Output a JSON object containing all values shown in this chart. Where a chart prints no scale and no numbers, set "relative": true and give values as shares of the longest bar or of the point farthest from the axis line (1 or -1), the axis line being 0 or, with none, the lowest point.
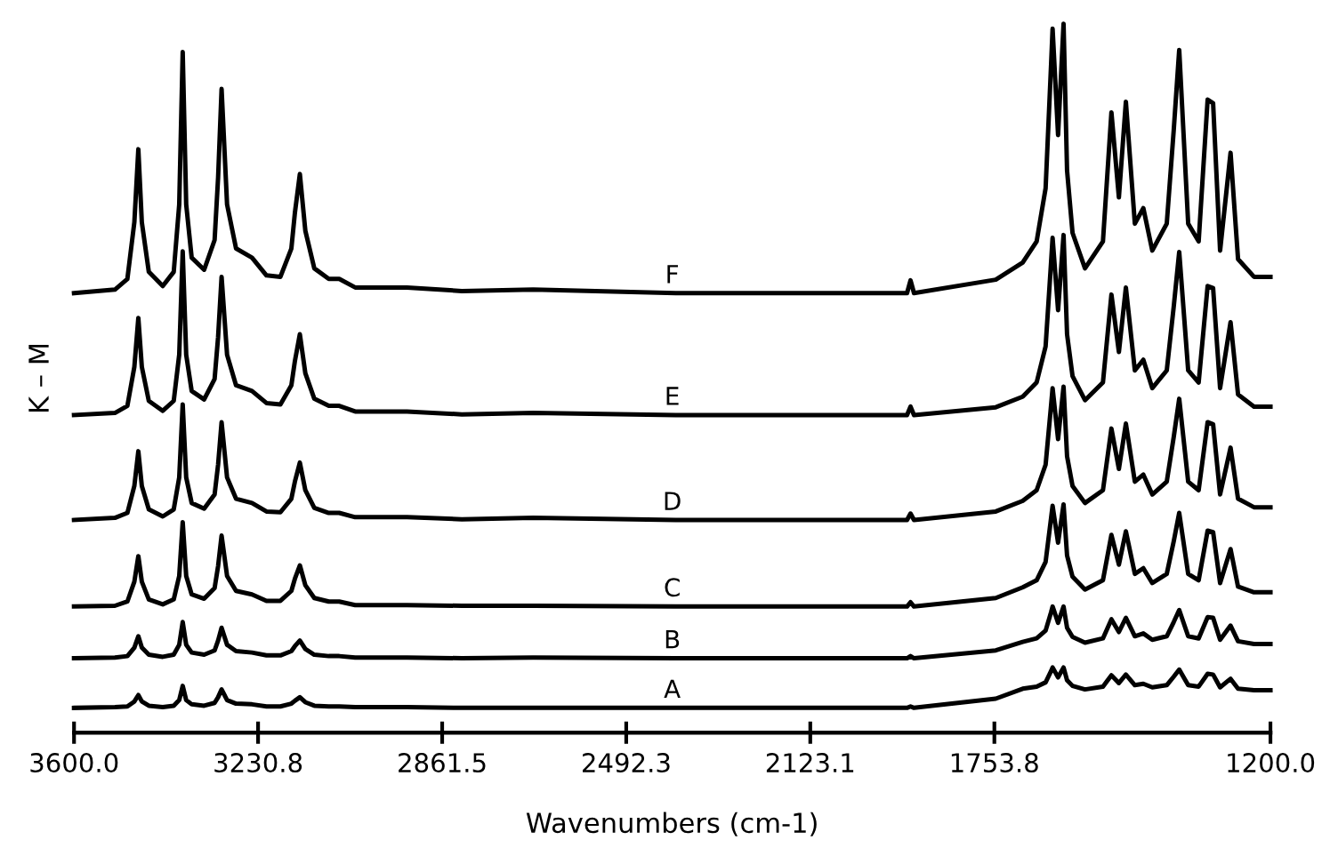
{
  "chart_data": {
    "type": "line",
    "relative": true,
    "xlabel": "Wavenumbers (cm-1)",
    "ylabel": "K – M",
    "legend": false,
    "grid": false,
    "marker": "none",
    "line_style": "solid",
    "x": [
      3600,
      3518,
      3493,
      3479,
      3471,
      3464,
      3450,
      3422,
      3400,
      3389,
      3382,
      3375,
      3364,
      3339,
      3318,
      3311,
      3304,
      3293,
      3275,
      3243,
      3214,
      3186,
      3164,
      3157,
      3147,
      3136,
      3118,
      3089,
      3068,
      3036,
      2932,
      2822,
      2679,
      2393,
      2143,
      1929,
      1922,
      1915,
      1751,
      1697,
      1669,
      1651,
      1640,
      1637,
      1626,
      1615,
      1608,
      1597,
      1572,
      1536,
      1519,
      1504,
      1490,
      1472,
      1455,
      1437,
      1408,
      1394,
      1383,
      1365,
      1344,
      1326,
      1315,
      1301,
      1280,
      1265,
      1233,
      1200
    ],
    "xlim": [
      3600,
      1200
    ],
    "xticks": [
      {
        "value": 3600,
        "label": "3600.0"
      },
      {
        "value": 3230.8,
        "label": "3230.8"
      },
      {
        "value": 2861.5,
        "label": "2861.5"
      },
      {
        "value": 2492.3,
        "label": "2492.3"
      },
      {
        "value": 2123.1,
        "label": "2123.1"
      },
      {
        "value": 1753.8,
        "label": "1753.8"
      },
      {
        "value": 1200,
        "label": "1200.0"
      }
    ],
    "series": [
      {
        "name": "A",
        "color": "#000000",
        "values": [
          0.035,
          0.036,
          0.037,
          0.044,
          0.053,
          0.044,
          0.038,
          0.036,
          0.038,
          0.046,
          0.066,
          0.046,
          0.04,
          0.038,
          0.042,
          0.05,
          0.061,
          0.046,
          0.041,
          0.04,
          0.037,
          0.037,
          0.041,
          0.045,
          0.05,
          0.043,
          0.038,
          0.037,
          0.037,
          0.036,
          0.036,
          0.035,
          0.035,
          0.035,
          0.035,
          0.035,
          0.037,
          0.035,
          0.048,
          0.062,
          0.065,
          0.071,
          0.087,
          0.092,
          0.078,
          0.092,
          0.074,
          0.066,
          0.061,
          0.065,
          0.081,
          0.07,
          0.082,
          0.067,
          0.069,
          0.064,
          0.067,
          0.079,
          0.089,
          0.067,
          0.065,
          0.083,
          0.082,
          0.064,
          0.076,
          0.062,
          0.06,
          0.06
        ]
      },
      {
        "name": "B",
        "color": "#000000",
        "values": [
          0.105,
          0.106,
          0.108,
          0.12,
          0.136,
          0.12,
          0.11,
          0.107,
          0.11,
          0.124,
          0.156,
          0.124,
          0.113,
          0.11,
          0.116,
          0.13,
          0.148,
          0.124,
          0.115,
          0.113,
          0.109,
          0.109,
          0.115,
          0.122,
          0.13,
          0.118,
          0.11,
          0.108,
          0.108,
          0.106,
          0.106,
          0.105,
          0.106,
          0.105,
          0.105,
          0.105,
          0.108,
          0.105,
          0.116,
          0.128,
          0.133,
          0.144,
          0.17,
          0.178,
          0.155,
          0.178,
          0.148,
          0.135,
          0.127,
          0.133,
          0.16,
          0.142,
          0.162,
          0.136,
          0.14,
          0.131,
          0.136,
          0.156,
          0.173,
          0.136,
          0.133,
          0.163,
          0.162,
          0.131,
          0.151,
          0.129,
          0.125,
          0.125
        ]
      },
      {
        "name": "C",
        "color": "#000000",
        "values": [
          0.178,
          0.179,
          0.185,
          0.213,
          0.249,
          0.213,
          0.188,
          0.181,
          0.188,
          0.221,
          0.297,
          0.221,
          0.195,
          0.189,
          0.204,
          0.235,
          0.278,
          0.221,
          0.2,
          0.195,
          0.186,
          0.186,
          0.2,
          0.217,
          0.236,
          0.208,
          0.19,
          0.185,
          0.185,
          0.18,
          0.18,
          0.179,
          0.179,
          0.178,
          0.178,
          0.178,
          0.184,
          0.178,
          0.19,
          0.205,
          0.215,
          0.241,
          0.303,
          0.32,
          0.268,
          0.322,
          0.25,
          0.22,
          0.202,
          0.215,
          0.279,
          0.237,
          0.284,
          0.224,
          0.232,
          0.211,
          0.224,
          0.27,
          0.31,
          0.224,
          0.215,
          0.285,
          0.283,
          0.211,
          0.259,
          0.206,
          0.198,
          0.198
        ]
      },
      {
        "name": "D",
        "color": "#000000",
        "values": [
          0.3,
          0.303,
          0.31,
          0.348,
          0.397,
          0.348,
          0.315,
          0.305,
          0.315,
          0.36,
          0.463,
          0.36,
          0.324,
          0.316,
          0.336,
          0.378,
          0.438,
          0.36,
          0.33,
          0.324,
          0.312,
          0.311,
          0.33,
          0.354,
          0.381,
          0.342,
          0.317,
          0.31,
          0.31,
          0.304,
          0.304,
          0.301,
          0.303,
          0.3,
          0.3,
          0.3,
          0.309,
          0.3,
          0.312,
          0.327,
          0.342,
          0.378,
          0.462,
          0.486,
          0.414,
          0.488,
          0.39,
          0.348,
          0.324,
          0.342,
          0.429,
          0.372,
          0.436,
          0.354,
          0.364,
          0.336,
          0.354,
          0.417,
          0.471,
          0.354,
          0.342,
          0.438,
          0.435,
          0.336,
          0.402,
          0.33,
          0.318,
          0.318
        ]
      },
      {
        "name": "E",
        "color": "#000000",
        "values": [
          0.448,
          0.451,
          0.461,
          0.516,
          0.585,
          0.516,
          0.468,
          0.454,
          0.468,
          0.533,
          0.679,
          0.533,
          0.482,
          0.47,
          0.499,
          0.558,
          0.643,
          0.533,
          0.49,
          0.482,
          0.465,
          0.463,
          0.49,
          0.524,
          0.562,
          0.507,
          0.471,
          0.461,
          0.461,
          0.453,
          0.453,
          0.449,
          0.451,
          0.448,
          0.448,
          0.448,
          0.46,
          0.448,
          0.459,
          0.474,
          0.494,
          0.545,
          0.664,
          0.698,
          0.596,
          0.702,
          0.562,
          0.503,
          0.469,
          0.494,
          0.618,
          0.537,
          0.628,
          0.511,
          0.526,
          0.486,
          0.511,
          0.601,
          0.678,
          0.511,
          0.494,
          0.63,
          0.627,
          0.486,
          0.579,
          0.477,
          0.46,
          0.46
        ]
      },
      {
        "name": "F",
        "color": "#000000",
        "values": [
          0.62,
          0.625,
          0.64,
          0.72,
          0.823,
          0.72,
          0.65,
          0.63,
          0.65,
          0.745,
          0.96,
          0.745,
          0.67,
          0.653,
          0.695,
          0.783,
          0.908,
          0.745,
          0.683,
          0.67,
          0.645,
          0.643,
          0.683,
          0.733,
          0.788,
          0.708,
          0.655,
          0.64,
          0.64,
          0.628,
          0.628,
          0.623,
          0.625,
          0.62,
          0.62,
          0.62,
          0.638,
          0.62,
          0.639,
          0.663,
          0.693,
          0.768,
          0.943,
          0.993,
          0.843,
          1.0,
          0.793,
          0.705,
          0.655,
          0.693,
          0.875,
          0.755,
          0.89,
          0.718,
          0.74,
          0.68,
          0.718,
          0.85,
          0.963,
          0.718,
          0.693,
          0.893,
          0.888,
          0.68,
          0.818,
          0.668,
          0.643,
          0.643
        ]
      }
    ]
  }
}
